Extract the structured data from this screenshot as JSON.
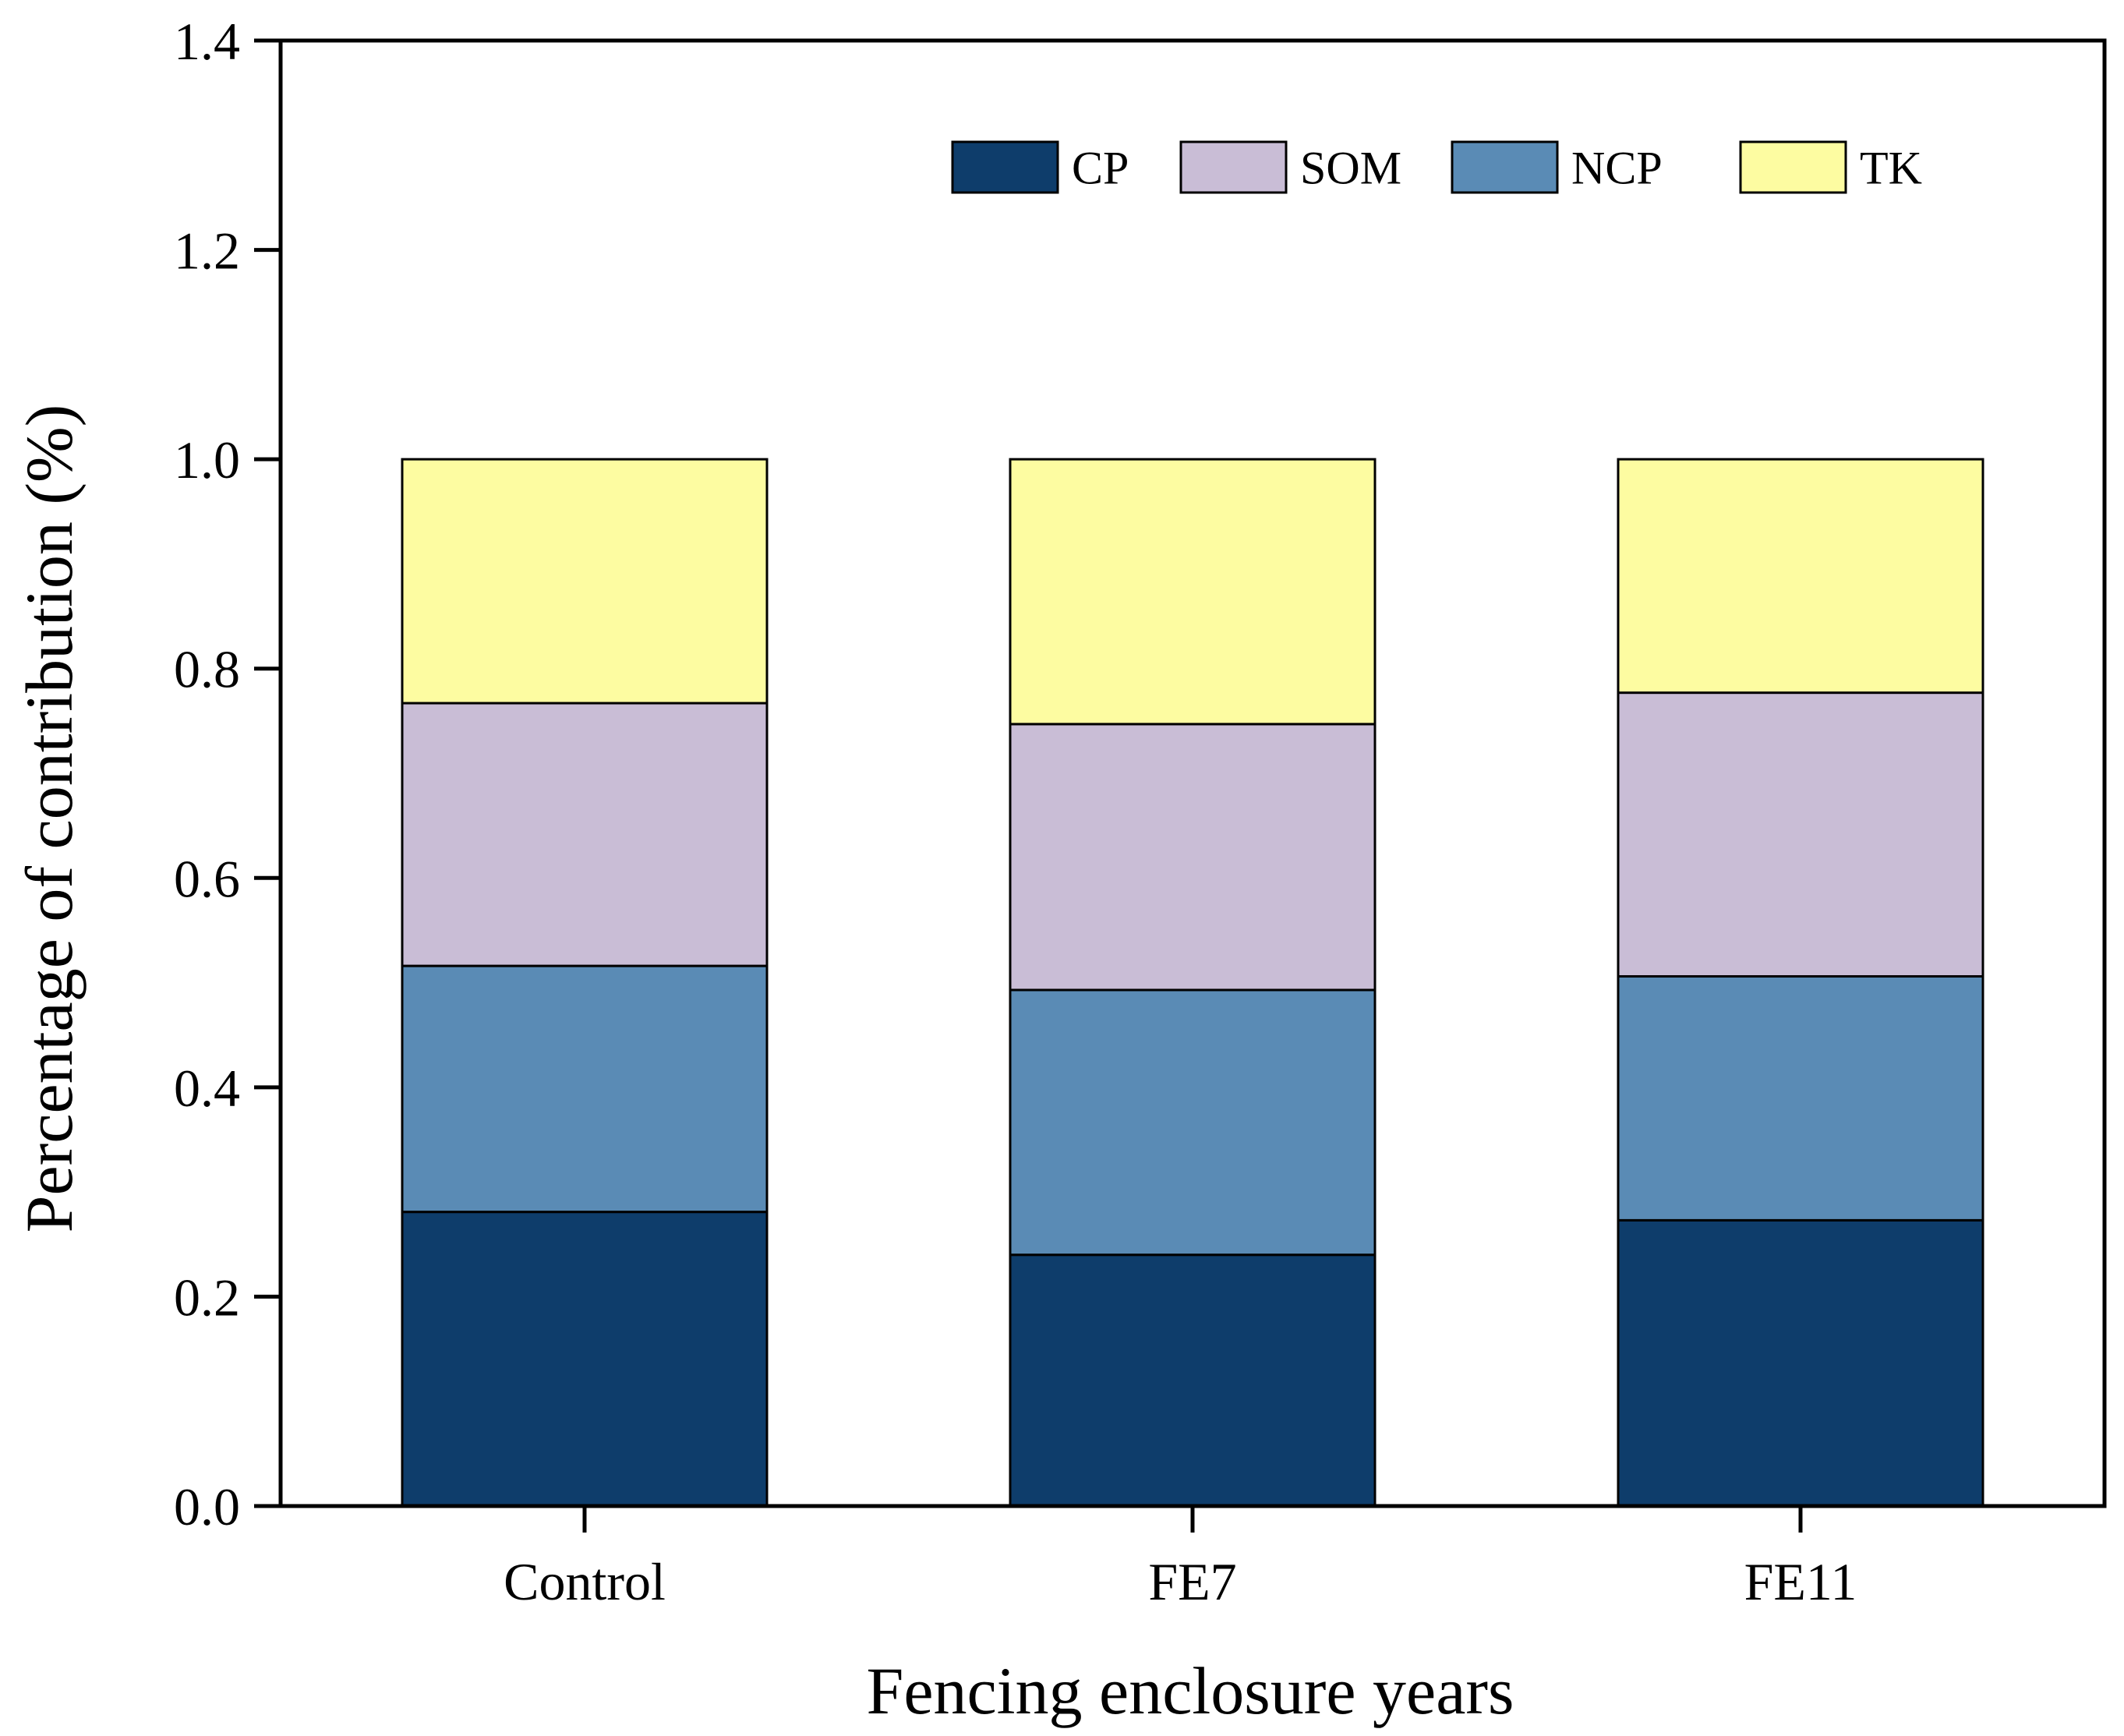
{
  "chart_data": {
    "type": "bar",
    "stacked": true,
    "categories": [
      "Control",
      "FE7",
      "FE11"
    ],
    "series": [
      {
        "name": "CP",
        "color": "#0e3d6b",
        "values": [
          0.281,
          0.24,
          0.273
        ]
      },
      {
        "name": "SOM",
        "color": "#c9bdd6",
        "values": [
          0.251,
          0.254,
          0.271
        ]
      },
      {
        "name": "NCP",
        "color": "#5a8bb5",
        "values": [
          0.235,
          0.253,
          0.233
        ]
      },
      {
        "name": "TK",
        "color": "#fdfca1",
        "values": [
          0.233,
          0.253,
          0.223
        ]
      }
    ],
    "stack_order": [
      "CP",
      "NCP",
      "SOM",
      "TK"
    ],
    "xlabel": "Fencing enclosure years",
    "ylabel": "Percentage of contribution (%)",
    "ylim": [
      0,
      1.4
    ],
    "yticks": [
      "0.0",
      "0.2",
      "0.4",
      "0.6",
      "0.8",
      "1.0",
      "1.2",
      "1.4"
    ],
    "grid": false,
    "legend_position": "top, inside plot, single row"
  }
}
